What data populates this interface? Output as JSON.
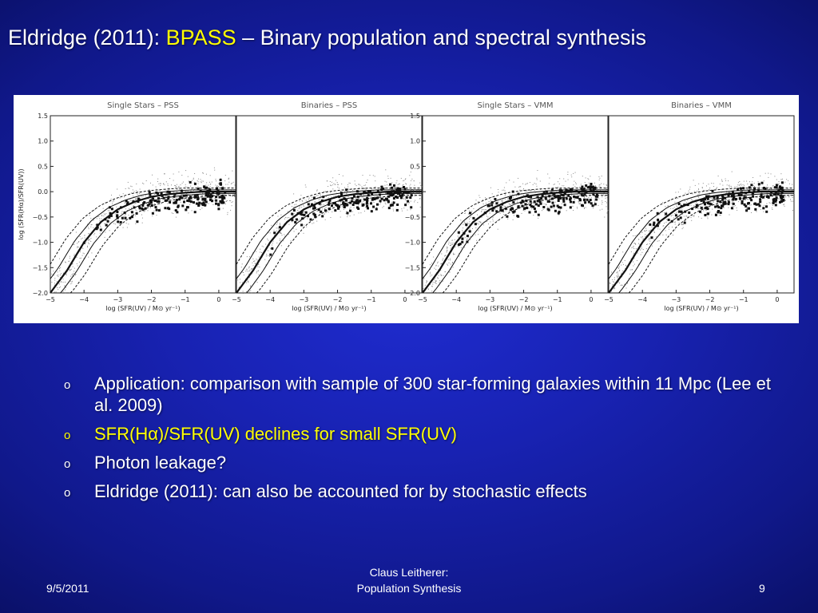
{
  "title": {
    "prefix": "Eldridge (2011): ",
    "highlight": "BPASS",
    "suffix": " – Binary population and spectral synthesis"
  },
  "figure": {
    "panels": [
      {
        "title": "Single Stars – PSS"
      },
      {
        "title": "Binaries – PSS"
      },
      {
        "title": "Single Stars – VMM"
      },
      {
        "title": "Binaries – VMM"
      }
    ],
    "xlabel": "log (SFR(UV) / M⊙ yr⁻¹)",
    "ylabel": "log (SFR(Hα)/SFR(UV))",
    "xticks": [
      "−5",
      "−4",
      "−3",
      "−2",
      "−1",
      "0"
    ],
    "yticks": [
      "1.5",
      "1.0",
      "0.5",
      "0.0",
      "−0.5",
      "−1.0",
      "−1.5",
      "−2.0"
    ]
  },
  "chart_data": {
    "type": "scatter",
    "xlim": [
      -5,
      0.5
    ],
    "ylim": [
      -2.0,
      1.5
    ],
    "grid": false,
    "panels": [
      "Single Stars – PSS",
      "Binaries – PSS",
      "Single Stars – VMM",
      "Binaries – VMM"
    ],
    "xlabel": "log (SFR(UV) / M⊙ yr⁻¹)",
    "ylabel": "log (SFR(Hα)/SFR(UV))",
    "observed_trend": {
      "x": [
        -4.0,
        -3.5,
        -3.0,
        -2.5,
        -2.0,
        -1.5,
        -1.0,
        -0.5,
        0.0
      ],
      "y": [
        -1.0,
        -0.6,
        -0.4,
        -0.3,
        -0.25,
        -0.2,
        -0.15,
        -0.1,
        -0.05
      ]
    },
    "model_median": {
      "x": [
        -5.0,
        -4.5,
        -4.0,
        -3.5,
        -3.0,
        -2.5,
        -2.0,
        -1.5,
        -1.0,
        -0.5,
        0.0,
        0.5
      ],
      "y": [
        -2.0,
        -1.55,
        -1.0,
        -0.6,
        -0.35,
        -0.2,
        -0.1,
        -0.05,
        -0.02,
        0.0,
        0.0,
        0.0
      ]
    }
  },
  "bullets": [
    {
      "marker": "o",
      "text": "Application: comparison with sample of 300 star-forming galaxies within 11 Mpc (Lee et al. 2009)"
    },
    {
      "marker": "o",
      "text": "SFR(Hα)/SFR(UV) declines for small SFR(UV)"
    },
    {
      "marker": "o",
      "text": "Photon leakage?"
    },
    {
      "marker": "o",
      "text": "Eldridge (2011): can also be accounted for by stochastic effects"
    }
  ],
  "footer": {
    "date": "9/5/2011",
    "author_line1": "Claus Leitherer:",
    "author_line2": "Population Synthesis",
    "page": "9"
  },
  "colors": {
    "background": "#1a23b8",
    "accent": "#ffff00",
    "text": "#ffffff"
  }
}
